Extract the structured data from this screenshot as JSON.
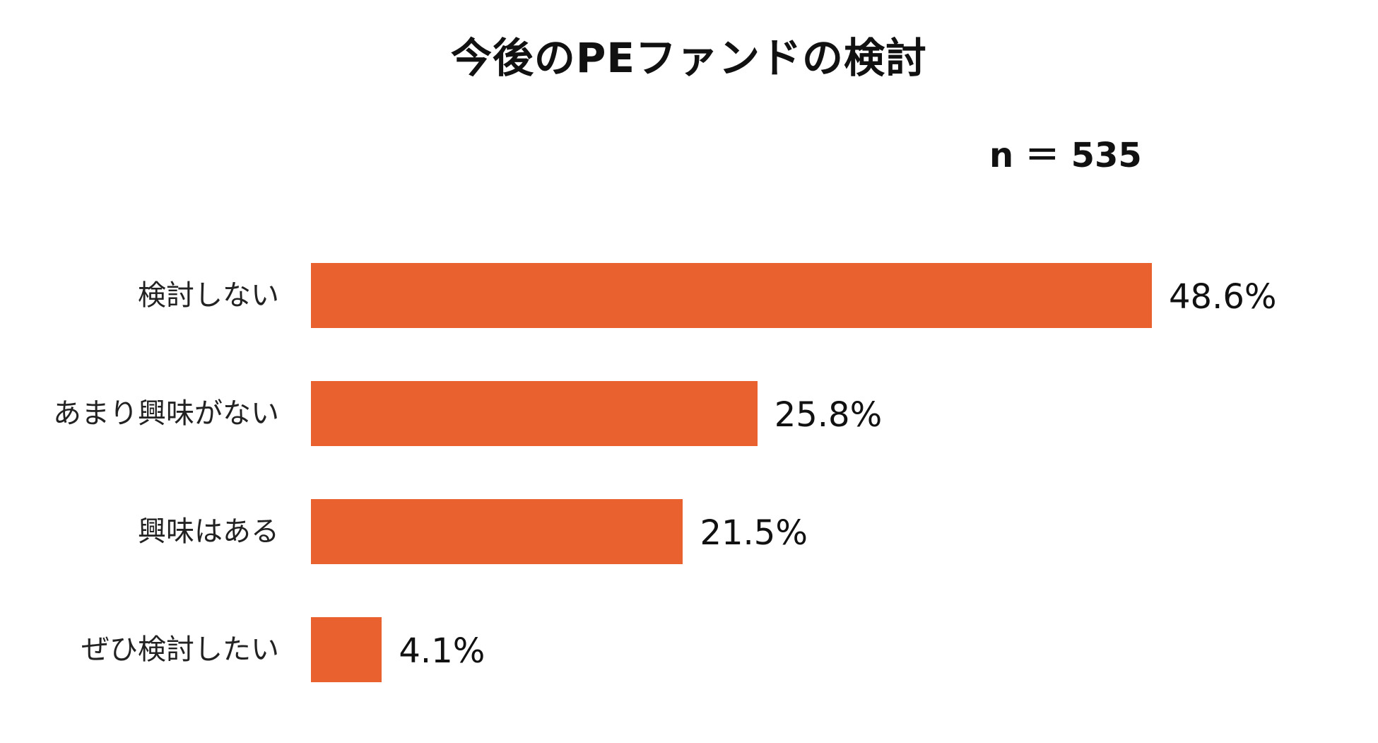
{
  "chart_data": {
    "type": "bar",
    "orientation": "horizontal",
    "title": "今後のPEファンドの検討",
    "annotation": "n ＝ 535",
    "categories": [
      "検討しない",
      "あまり興味がない",
      "興味はある",
      "ぜひ検討したい"
    ],
    "values": [
      48.6,
      25.8,
      21.5,
      4.1
    ],
    "value_labels": [
      "48.6%",
      "25.8%",
      "21.5%",
      "4.1%"
    ],
    "bar_color": "#E8612F",
    "grid": false,
    "legend": "none"
  }
}
